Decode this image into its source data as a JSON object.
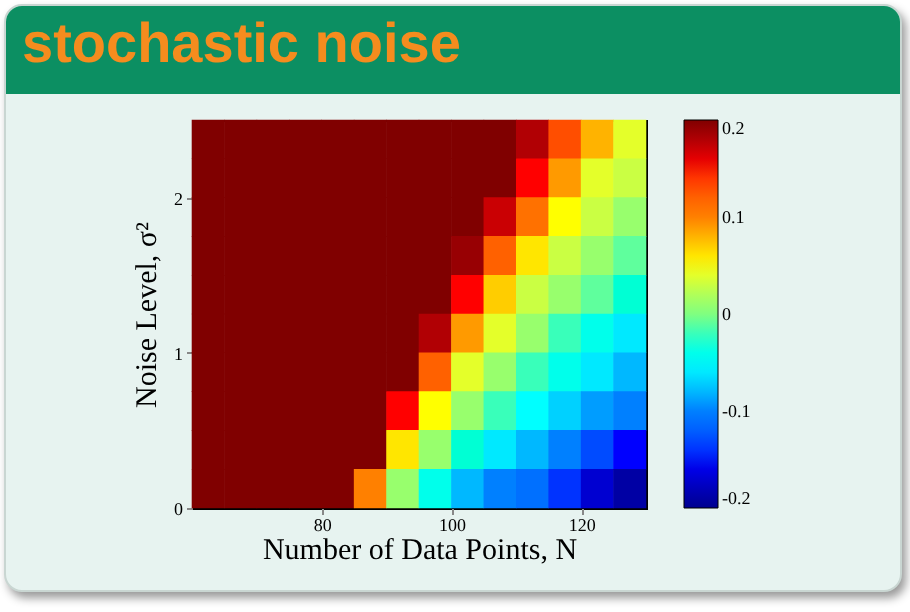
{
  "chart_data": {
    "type": "scatter",
    "title": "stochastic noise",
    "xlabel": "Number of Data Points, N",
    "ylabel": "Noise Level, σ²",
    "marker": "square",
    "x": [
      62.5,
      67.5,
      72.5,
      77.5,
      82.5,
      87.5,
      92.5,
      97.5,
      102.5,
      107.5,
      112.5,
      117.5,
      122.5,
      127.5,
      62.5,
      67.5,
      72.5,
      77.5,
      82.5,
      87.5,
      92.5,
      97.5,
      102.5,
      107.5,
      112.5,
      117.5,
      122.5,
      127.5,
      62.5,
      67.5,
      72.5,
      77.5,
      82.5,
      87.5,
      92.5,
      97.5,
      102.5,
      107.5,
      112.5,
      117.5,
      122.5,
      127.5,
      62.5,
      67.5,
      72.5,
      77.5,
      82.5,
      87.5,
      92.5,
      97.5,
      102.5,
      107.5,
      112.5,
      117.5,
      122.5,
      127.5,
      62.5,
      67.5,
      72.5,
      77.5,
      82.5,
      87.5,
      92.5,
      97.5,
      102.5,
      107.5,
      112.5,
      117.5,
      122.5,
      127.5,
      62.5,
      67.5,
      72.5,
      77.5,
      82.5,
      87.5,
      92.5,
      97.5,
      102.5,
      107.5,
      112.5,
      117.5,
      122.5,
      127.5,
      62.5,
      67.5,
      72.5,
      77.5,
      82.5,
      87.5,
      92.5,
      97.5,
      102.5,
      107.5,
      112.5,
      117.5,
      122.5,
      127.5,
      62.5,
      67.5,
      72.5,
      77.5,
      82.5,
      87.5,
      92.5,
      97.5,
      102.5,
      107.5,
      112.5,
      117.5,
      122.5,
      127.5,
      62.5,
      67.5,
      72.5,
      77.5,
      82.5,
      87.5,
      92.5,
      97.5,
      102.5,
      107.5,
      112.5,
      117.5,
      122.5,
      127.5,
      62.5,
      67.5,
      72.5,
      77.5,
      82.5,
      87.5,
      92.5,
      97.5,
      102.5,
      107.5,
      112.5,
      117.5,
      122.5,
      127.5
    ],
    "values": [
      2.375,
      2.375,
      2.375,
      2.375,
      2.375,
      2.375,
      2.375,
      2.375,
      2.375,
      2.375,
      2.375,
      2.375,
      2.375,
      2.375,
      2.125,
      2.125,
      2.125,
      2.125,
      2.125,
      2.125,
      2.125,
      2.125,
      2.125,
      2.125,
      2.125,
      2.125,
      2.125,
      2.125,
      1.875,
      1.875,
      1.875,
      1.875,
      1.875,
      1.875,
      1.875,
      1.875,
      1.875,
      1.875,
      1.875,
      1.875,
      1.875,
      1.875,
      1.625,
      1.625,
      1.625,
      1.625,
      1.625,
      1.625,
      1.625,
      1.625,
      1.625,
      1.625,
      1.625,
      1.625,
      1.625,
      1.625,
      1.375,
      1.375,
      1.375,
      1.375,
      1.375,
      1.375,
      1.375,
      1.375,
      1.375,
      1.375,
      1.375,
      1.375,
      1.375,
      1.375,
      1.125,
      1.125,
      1.125,
      1.125,
      1.125,
      1.125,
      1.125,
      1.125,
      1.125,
      1.125,
      1.125,
      1.125,
      1.125,
      1.125,
      0.875,
      0.875,
      0.875,
      0.875,
      0.875,
      0.875,
      0.875,
      0.875,
      0.875,
      0.875,
      0.875,
      0.875,
      0.875,
      0.875,
      0.625,
      0.625,
      0.625,
      0.625,
      0.625,
      0.625,
      0.625,
      0.625,
      0.625,
      0.625,
      0.625,
      0.625,
      0.625,
      0.625,
      0.375,
      0.375,
      0.375,
      0.375,
      0.375,
      0.375,
      0.375,
      0.375,
      0.375,
      0.375,
      0.375,
      0.375,
      0.375,
      0.375,
      0.125,
      0.125,
      0.125,
      0.125,
      0.125,
      0.125,
      0.125,
      0.125,
      0.125,
      0.125,
      0.125,
      0.125,
      0.125,
      0.125
    ],
    "cvalues": [
      0.2,
      0.2,
      0.2,
      0.2,
      0.2,
      0.2,
      0.2,
      0.2,
      0.2,
      0.2,
      0.18,
      0.13,
      0.08,
      0.04,
      0.2,
      0.2,
      0.2,
      0.2,
      0.2,
      0.2,
      0.2,
      0.2,
      0.2,
      0.2,
      0.15,
      0.09,
      0.04,
      0.03,
      0.2,
      0.2,
      0.2,
      0.2,
      0.2,
      0.2,
      0.2,
      0.2,
      0.2,
      0.17,
      0.11,
      0.05,
      0.03,
      0.01,
      0.2,
      0.2,
      0.2,
      0.2,
      0.2,
      0.2,
      0.2,
      0.2,
      0.19,
      0.12,
      0.06,
      0.03,
      0.01,
      -0.01,
      0.2,
      0.2,
      0.2,
      0.2,
      0.2,
      0.2,
      0.2,
      0.2,
      0.15,
      0.07,
      0.03,
      0.01,
      -0.01,
      -0.03,
      0.2,
      0.2,
      0.2,
      0.2,
      0.2,
      0.2,
      0.2,
      0.18,
      0.09,
      0.04,
      0.01,
      -0.02,
      -0.04,
      -0.06,
      0.2,
      0.2,
      0.2,
      0.2,
      0.2,
      0.2,
      0.2,
      0.12,
      0.04,
      0.01,
      -0.02,
      -0.04,
      -0.06,
      -0.08,
      0.2,
      0.2,
      0.2,
      0.2,
      0.2,
      0.2,
      0.15,
      0.05,
      0.01,
      -0.02,
      -0.05,
      -0.07,
      -0.09,
      -0.1,
      0.2,
      0.2,
      0.2,
      0.2,
      0.2,
      0.2,
      0.06,
      0.01,
      -0.03,
      -0.06,
      -0.08,
      -0.1,
      -0.13,
      -0.15,
      0.2,
      0.2,
      0.2,
      0.2,
      0.2,
      0.1,
      0.01,
      -0.04,
      -0.08,
      -0.1,
      -0.11,
      -0.14,
      -0.17,
      -0.19
    ],
    "xlim": [
      60,
      130
    ],
    "xticks": [
      80,
      100,
      120
    ],
    "ylim": [
      0,
      2.5
    ],
    "yticks": [
      0,
      1,
      2
    ],
    "clim": [
      -0.2,
      0.2
    ],
    "cticks": [
      -0.2,
      -0.1,
      0,
      0.1,
      0.2
    ]
  }
}
